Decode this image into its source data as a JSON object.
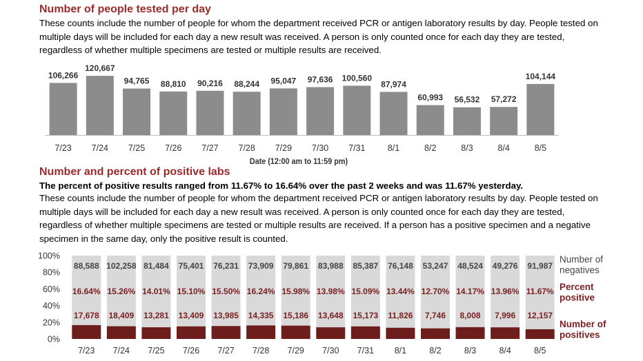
{
  "section1": {
    "title": "Number of people tested per day",
    "description": "These counts include the number of people for whom the department received PCR or antigen laboratory results by day. People tested on multiple days will be included for each day a new result was received. A person is only counted once for each day they are tested, regardless of whether multiple specimens are tested or multiple results are received."
  },
  "section2": {
    "title": "Number and percent of positive labs",
    "highlight": "The percent of positive results ranged from 11.67% to 16.64% over the past 2 weeks and was 11.67% yesterday.",
    "description": "These counts include the number of people for whom the department received PCR or antigen laboratory results by day. People tested on multiple days will be included for each day a new result was received. A person is only counted once for each day they are tested, regardless of whether multiple specimens are tested or multiple results are received. If a person has a positive specimen and a negative specimen in the same day, only the positive result is counted."
  },
  "colors": {
    "title": "#9b2b2b",
    "tested_bar": "#8c8c8c",
    "negatives": "#d9d9d9",
    "positives": "#6e1d1d",
    "percent_text": "#7a1f1f"
  },
  "chart_data": [
    {
      "type": "bar",
      "categories": [
        "7/23",
        "7/24",
        "7/25",
        "7/26",
        "7/27",
        "7/28",
        "7/29",
        "7/30",
        "7/31",
        "8/1",
        "8/2",
        "8/3",
        "8/4",
        "8/5"
      ],
      "values": [
        106266,
        120667,
        94765,
        88810,
        90216,
        88244,
        95047,
        97636,
        100560,
        87974,
        60993,
        56532,
        57272,
        104144
      ],
      "value_labels": [
        "106,266",
        "120,667",
        "94,765",
        "88,810",
        "90,216",
        "88,244",
        "95,047",
        "97,636",
        "100,560",
        "87,974",
        "60,993",
        "56,532",
        "57,272",
        "104,144"
      ],
      "xlabel": "Date (12:00 am to 11:59 pm)",
      "ylim": [
        0,
        125000
      ],
      "grid": false
    },
    {
      "type": "bar",
      "stacked_percent": true,
      "categories": [
        "7/23",
        "7/24",
        "7/25",
        "7/26",
        "7/27",
        "7/28",
        "7/29",
        "7/30",
        "7/31",
        "8/1",
        "8/2",
        "8/3",
        "8/4",
        "8/5"
      ],
      "yticks": [
        "100%",
        "80%",
        "60%",
        "40%",
        "20%",
        "0%"
      ],
      "series": [
        {
          "name": "Number of negatives",
          "name_lines": [
            "Number of",
            "negatives"
          ],
          "values": [
            88588,
            102258,
            81484,
            75401,
            76231,
            73909,
            79861,
            83988,
            85387,
            76148,
            53247,
            48524,
            49276,
            91987
          ],
          "labels": [
            "88,588",
            "102,258",
            "81,484",
            "75,401",
            "76,231",
            "73,909",
            "79,861",
            "83,988",
            "85,387",
            "76,148",
            "53,247",
            "48,524",
            "49,276",
            "91,987"
          ]
        },
        {
          "name": "Number of positives",
          "name_lines": [
            "Number of",
            "positives"
          ],
          "values": [
            17678,
            18409,
            13281,
            13409,
            13985,
            14335,
            15186,
            13648,
            15173,
            11826,
            7746,
            8008,
            7996,
            12157
          ],
          "labels": [
            "17,678",
            "18,409",
            "13,281",
            "13,409",
            "13,985",
            "14,335",
            "15,186",
            "13,648",
            "15,173",
            "11,826",
            "7,746",
            "8,008",
            "7,996",
            "12,157"
          ]
        }
      ],
      "percent_positive": {
        "name": "Percent positive",
        "name_lines": [
          "Percent",
          "positive"
        ],
        "values": [
          16.64,
          15.26,
          14.01,
          15.1,
          15.5,
          16.24,
          15.98,
          13.98,
          15.09,
          13.44,
          12.7,
          14.17,
          13.96,
          11.67
        ],
        "labels": [
          "16.64%",
          "15.26%",
          "14.01%",
          "15.10%",
          "15.50%",
          "16.24%",
          "15.98%",
          "13.98%",
          "15.09%",
          "13.44%",
          "12.70%",
          "14.17%",
          "13.96%",
          "11.67%"
        ]
      },
      "ylim": [
        0,
        100
      ],
      "grid": false
    }
  ]
}
